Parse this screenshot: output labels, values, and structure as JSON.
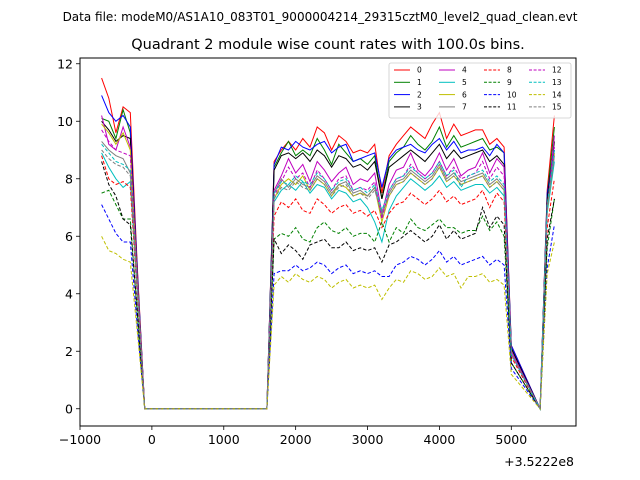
{
  "figure": {
    "suptitle": "Data file: modeM0/AS1A10_083T01_9000004214_29315cztM0_level2_quad_clean.evt"
  },
  "chart_data": {
    "type": "line",
    "title": "Quadrant 2 module wise count rates with 100.0s bins.",
    "xlabel": "",
    "ylabel": "",
    "x_offset_label": "+3.5222e8",
    "xlim": [
      -1000,
      5900
    ],
    "ylim": [
      -0.6,
      12.2
    ],
    "x_ticks": [
      -1000,
      0,
      1000,
      2000,
      3000,
      4000,
      5000
    ],
    "x_tick_labels": [
      "−1000",
      "0",
      "1000",
      "2000",
      "3000",
      "4000",
      "5000"
    ],
    "y_ticks": [
      0,
      2,
      4,
      6,
      8,
      10,
      12
    ],
    "y_tick_labels": [
      "0",
      "2",
      "4",
      "6",
      "8",
      "10",
      "12"
    ],
    "grid": false,
    "legend_position": "top-right",
    "legend_columns": 4,
    "x": [
      -700,
      -600,
      -500,
      -400,
      -300,
      -200,
      -100,
      1600,
      1700,
      1800,
      1900,
      2000,
      2100,
      2200,
      2300,
      2400,
      2500,
      2600,
      2700,
      2800,
      2900,
      3000,
      3100,
      3200,
      3300,
      3400,
      3500,
      3600,
      3700,
      3800,
      3900,
      4000,
      4100,
      4200,
      4300,
      4400,
      4500,
      4600,
      4700,
      4800,
      4900,
      5000,
      5400,
      5500,
      5600
    ],
    "series": [
      {
        "name": "0",
        "color": "#ff0000",
        "dash": "solid",
        "values": [
          11.5,
          10.8,
          9.6,
          10.5,
          10.3,
          4.8,
          0.0,
          0.0,
          8.6,
          9.0,
          9.3,
          9.0,
          9.4,
          9.1,
          9.8,
          9.6,
          9.0,
          9.5,
          9.3,
          8.9,
          9.0,
          8.9,
          9.2,
          7.5,
          8.8,
          9.2,
          9.5,
          9.8,
          9.6,
          9.4,
          9.9,
          10.3,
          9.4,
          9.9,
          9.5,
          9.6,
          9.7,
          9.7,
          9.2,
          9.4,
          9.1,
          2.2,
          0.0,
          7.6,
          10.2
        ]
      },
      {
        "name": "1",
        "color": "#008000",
        "dash": "solid",
        "values": [
          10.1,
          10.0,
          9.4,
          10.4,
          9.6,
          4.6,
          0.0,
          0.0,
          8.4,
          8.9,
          9.3,
          8.8,
          9.0,
          8.8,
          9.4,
          9.0,
          8.5,
          9.2,
          8.9,
          8.6,
          8.7,
          8.5,
          8.8,
          7.3,
          8.6,
          8.9,
          9.1,
          9.5,
          9.2,
          9.0,
          9.3,
          9.8,
          9.1,
          9.5,
          9.1,
          9.2,
          9.3,
          9.4,
          9.0,
          9.1,
          8.9,
          2.1,
          0.0,
          7.4,
          9.8
        ]
      },
      {
        "name": "2",
        "color": "#0000ff",
        "dash": "solid",
        "values": [
          10.9,
          10.3,
          10.0,
          10.2,
          9.8,
          4.7,
          0.0,
          0.0,
          8.5,
          9.1,
          9.0,
          9.3,
          9.1,
          9.0,
          9.2,
          9.3,
          8.9,
          9.1,
          9.2,
          8.6,
          8.7,
          8.8,
          8.9,
          7.7,
          8.7,
          9.0,
          9.1,
          9.2,
          9.0,
          8.9,
          9.2,
          9.4,
          9.0,
          9.3,
          8.9,
          9.0,
          9.0,
          9.1,
          8.8,
          9.2,
          8.9,
          2.2,
          0.0,
          7.5,
          9.0
        ]
      },
      {
        "name": "3",
        "color": "#000000",
        "dash": "solid",
        "values": [
          10.0,
          9.7,
          9.3,
          9.5,
          9.4,
          4.5,
          0.0,
          0.0,
          8.3,
          8.8,
          8.9,
          8.7,
          8.9,
          8.6,
          9.0,
          8.8,
          8.4,
          8.8,
          8.7,
          8.4,
          8.5,
          8.3,
          8.6,
          7.3,
          8.4,
          8.6,
          8.8,
          9.0,
          8.8,
          8.6,
          8.9,
          9.2,
          8.7,
          9.0,
          8.7,
          8.8,
          8.9,
          9.0,
          8.6,
          8.8,
          8.5,
          2.1,
          0.0,
          7.3,
          9.3
        ]
      },
      {
        "name": "4",
        "color": "#bf00bf",
        "dash": "solid",
        "values": [
          10.2,
          9.2,
          9.0,
          9.8,
          9.1,
          4.4,
          0.0,
          0.0,
          7.6,
          8.1,
          8.7,
          8.2,
          8.5,
          7.9,
          8.6,
          8.3,
          7.9,
          8.2,
          8.4,
          7.8,
          8.0,
          7.9,
          8.2,
          6.8,
          7.8,
          8.3,
          8.4,
          8.9,
          8.3,
          8.1,
          8.4,
          8.9,
          8.3,
          8.7,
          8.1,
          8.3,
          8.4,
          8.9,
          8.2,
          8.7,
          8.4,
          2.0,
          0.0,
          6.9,
          9.5
        ]
      },
      {
        "name": "5",
        "color": "#00bfbf",
        "dash": "solid",
        "values": [
          8.9,
          8.4,
          8.0,
          7.7,
          7.9,
          3.9,
          0.0,
          0.0,
          7.2,
          7.6,
          7.8,
          7.6,
          7.9,
          7.5,
          7.8,
          7.7,
          7.3,
          7.6,
          7.5,
          7.2,
          7.3,
          7.0,
          6.5,
          5.8,
          6.9,
          7.4,
          7.7,
          8.0,
          7.8,
          7.6,
          7.8,
          8.1,
          7.7,
          7.9,
          7.6,
          7.7,
          7.8,
          7.8,
          7.5,
          7.7,
          7.4,
          1.9,
          0.0,
          6.8,
          8.6
        ]
      },
      {
        "name": "6",
        "color": "#bfbf00",
        "dash": "solid",
        "values": [
          9.9,
          9.6,
          9.2,
          9.6,
          9.0,
          4.3,
          0.0,
          0.0,
          7.3,
          7.8,
          8.0,
          7.8,
          8.1,
          7.6,
          8.0,
          7.8,
          7.4,
          7.8,
          7.7,
          7.4,
          7.5,
          7.4,
          7.7,
          6.5,
          7.4,
          7.8,
          7.9,
          8.2,
          8.0,
          7.8,
          8.0,
          8.4,
          7.9,
          8.1,
          7.8,
          7.9,
          8.0,
          8.1,
          7.7,
          7.9,
          7.6,
          1.9,
          0.0,
          6.9,
          8.9
        ]
      },
      {
        "name": "7",
        "color": "#808080",
        "dash": "solid",
        "values": [
          9.3,
          9.0,
          8.8,
          8.7,
          8.2,
          4.0,
          0.0,
          0.0,
          7.5,
          8.0,
          7.7,
          8.0,
          7.8,
          7.7,
          8.1,
          7.9,
          7.5,
          7.8,
          7.9,
          7.5,
          7.6,
          7.4,
          7.7,
          6.7,
          7.5,
          7.9,
          8.0,
          8.3,
          8.1,
          7.9,
          8.1,
          8.5,
          8.0,
          8.2,
          7.9,
          8.0,
          8.1,
          8.2,
          7.8,
          8.0,
          7.7,
          1.9,
          0.0,
          7.0,
          8.8
        ]
      },
      {
        "name": "8",
        "color": "#ff0000",
        "dash": "dashed",
        "values": [
          8.8,
          8.0,
          7.8,
          7.9,
          7.7,
          3.8,
          0.0,
          0.0,
          6.7,
          7.2,
          7.0,
          7.3,
          6.9,
          6.8,
          7.3,
          7.1,
          6.8,
          7.0,
          7.1,
          6.8,
          6.9,
          6.7,
          6.9,
          6.3,
          6.8,
          7.1,
          7.2,
          7.5,
          7.3,
          7.1,
          7.3,
          7.6,
          7.2,
          7.4,
          7.1,
          7.2,
          7.3,
          7.6,
          7.0,
          7.5,
          7.2,
          1.8,
          0.0,
          6.3,
          8.0
        ]
      },
      {
        "name": "9",
        "color": "#008000",
        "dash": "dashed",
        "values": [
          7.5,
          7.6,
          7.1,
          6.6,
          6.6,
          3.2,
          0.0,
          0.0,
          5.9,
          6.1,
          6.0,
          6.3,
          5.9,
          5.8,
          6.3,
          6.5,
          6.2,
          6.1,
          6.3,
          6.0,
          6.1,
          6.1,
          5.8,
          6.5,
          5.8,
          6.3,
          6.1,
          6.6,
          6.3,
          6.2,
          6.4,
          6.6,
          6.3,
          6.3,
          6.1,
          6.2,
          6.2,
          6.7,
          6.2,
          6.5,
          6.0,
          1.6,
          0.0,
          5.6,
          7.3
        ]
      },
      {
        "name": "10",
        "color": "#0000ff",
        "dash": "dashed",
        "values": [
          7.1,
          6.6,
          6.1,
          5.8,
          5.8,
          2.8,
          0.0,
          0.0,
          4.7,
          4.8,
          4.8,
          5.0,
          4.8,
          4.9,
          5.1,
          5.0,
          4.7,
          4.9,
          5.0,
          4.7,
          4.8,
          4.7,
          4.8,
          4.6,
          4.6,
          5.0,
          5.1,
          5.3,
          5.2,
          5.0,
          5.2,
          5.5,
          5.1,
          5.3,
          5.0,
          5.1,
          5.2,
          5.3,
          5.0,
          5.2,
          5.0,
          1.4,
          0.0,
          4.9,
          6.4
        ]
      },
      {
        "name": "11",
        "color": "#000000",
        "dash": "dashed",
        "values": [
          8.6,
          7.8,
          7.4,
          6.6,
          6.4,
          3.3,
          0.0,
          0.0,
          5.9,
          5.4,
          5.7,
          5.5,
          5.2,
          5.7,
          5.8,
          5.9,
          5.6,
          5.6,
          5.8,
          5.5,
          5.6,
          5.5,
          5.6,
          5.1,
          5.7,
          5.8,
          6.0,
          6.2,
          6.0,
          5.8,
          6.0,
          6.4,
          5.9,
          6.2,
          5.9,
          6.0,
          6.1,
          7.0,
          6.3,
          6.7,
          6.4,
          1.6,
          0.0,
          5.9,
          7.3
        ]
      },
      {
        "name": "12",
        "color": "#bf00bf",
        "dash": "dashed",
        "values": [
          9.7,
          9.3,
          9.0,
          8.9,
          8.8,
          4.2,
          0.0,
          0.0,
          7.4,
          7.9,
          8.4,
          8.0,
          8.2,
          7.7,
          8.3,
          8.0,
          7.6,
          8.0,
          8.1,
          7.6,
          7.7,
          7.6,
          7.9,
          6.6,
          7.6,
          8.0,
          8.1,
          8.5,
          8.2,
          8.0,
          8.2,
          8.6,
          8.1,
          8.4,
          8.0,
          8.1,
          8.2,
          8.6,
          8.0,
          8.4,
          8.1,
          1.9,
          0.0,
          7.0,
          9.1
        ]
      },
      {
        "name": "13",
        "color": "#00bfbf",
        "dash": "dashed",
        "values": [
          9.2,
          8.9,
          8.6,
          8.5,
          8.3,
          4.0,
          0.0,
          0.0,
          7.5,
          7.9,
          7.8,
          8.1,
          7.9,
          7.8,
          8.2,
          8.0,
          7.6,
          7.9,
          8.0,
          7.6,
          7.7,
          7.5,
          7.8,
          6.9,
          7.6,
          8.0,
          8.1,
          8.4,
          8.2,
          8.0,
          8.2,
          8.6,
          8.1,
          8.3,
          7.7,
          8.1,
          8.2,
          8.3,
          7.9,
          8.1,
          7.8,
          1.9,
          0.0,
          7.1,
          9.0
        ]
      },
      {
        "name": "14",
        "color": "#bfbf00",
        "dash": "dashed",
        "values": [
          6.0,
          5.5,
          5.4,
          5.2,
          5.1,
          2.6,
          0.0,
          0.0,
          4.3,
          4.6,
          4.4,
          4.7,
          4.5,
          4.4,
          4.6,
          4.5,
          4.2,
          4.4,
          4.5,
          4.2,
          4.3,
          4.2,
          4.3,
          3.8,
          4.2,
          4.5,
          4.4,
          4.8,
          4.7,
          4.5,
          4.6,
          4.9,
          4.6,
          4.7,
          4.2,
          4.6,
          4.6,
          4.7,
          4.4,
          4.5,
          4.3,
          1.2,
          0.0,
          4.7,
          5.8
        ]
      },
      {
        "name": "15",
        "color": "#808080",
        "dash": "dashed",
        "values": [
          9.0,
          8.7,
          8.5,
          8.4,
          8.1,
          3.9,
          0.0,
          0.0,
          7.3,
          7.7,
          7.6,
          7.9,
          7.7,
          7.6,
          8.0,
          7.8,
          7.4,
          7.7,
          7.8,
          7.4,
          7.5,
          7.3,
          7.6,
          6.8,
          7.4,
          7.8,
          7.9,
          8.2,
          8.0,
          7.8,
          8.0,
          8.4,
          7.9,
          8.1,
          7.8,
          7.9,
          8.0,
          8.1,
          7.7,
          7.9,
          7.6,
          1.9,
          0.0,
          7.0,
          8.8
        ]
      }
    ]
  }
}
